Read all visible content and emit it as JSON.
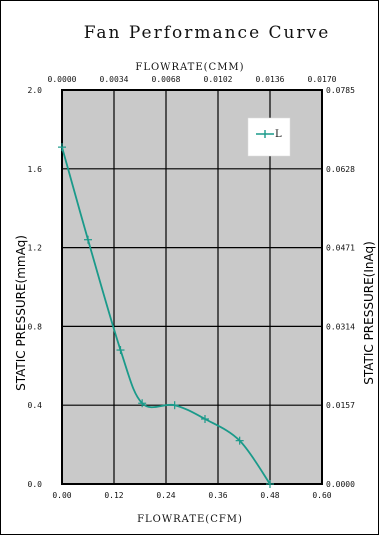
{
  "chart_data": {
    "type": "line",
    "title": "Fan Performance Curve",
    "top_axis_label": "FLOWRATE(CMM)",
    "bottom_axis_label": "FLOWRATE(CFM)",
    "left_axis_label": "STATIC PRESSURE(mmAq)",
    "right_axis_label": "STATIC PRESSURE(InAq)",
    "x_ticks": [
      "0.00",
      "0.12",
      "0.24",
      "0.36",
      "0.48",
      "0.60"
    ],
    "x_tick_values": [
      0,
      0.12,
      0.24,
      0.36,
      0.48,
      0.6
    ],
    "top_ticks": [
      "0.0000",
      "0.0034",
      "0.0068",
      "0.0102",
      "0.0136",
      "0.0170"
    ],
    "y_ticks": [
      "0.0",
      "0.4",
      "0.8",
      "1.2",
      "1.6",
      "2.0"
    ],
    "y_tick_values": [
      0,
      0.4,
      0.8,
      1.2,
      1.6,
      2.0
    ],
    "right_ticks": [
      "0.0000",
      "0.0157",
      "0.0314",
      "0.0471",
      "0.0628",
      "0.0785"
    ],
    "xlim": [
      0,
      0.6
    ],
    "ylim": [
      0,
      2.0
    ],
    "grid": true,
    "legend_position": "top-right",
    "series": [
      {
        "name": "L",
        "color": "#1a9a8a",
        "x": [
          0.0,
          0.06,
          0.135,
          0.185,
          0.26,
          0.33,
          0.41,
          0.48
        ],
        "y": [
          1.71,
          1.24,
          0.68,
          0.41,
          0.4,
          0.33,
          0.22,
          0.0
        ]
      }
    ]
  }
}
